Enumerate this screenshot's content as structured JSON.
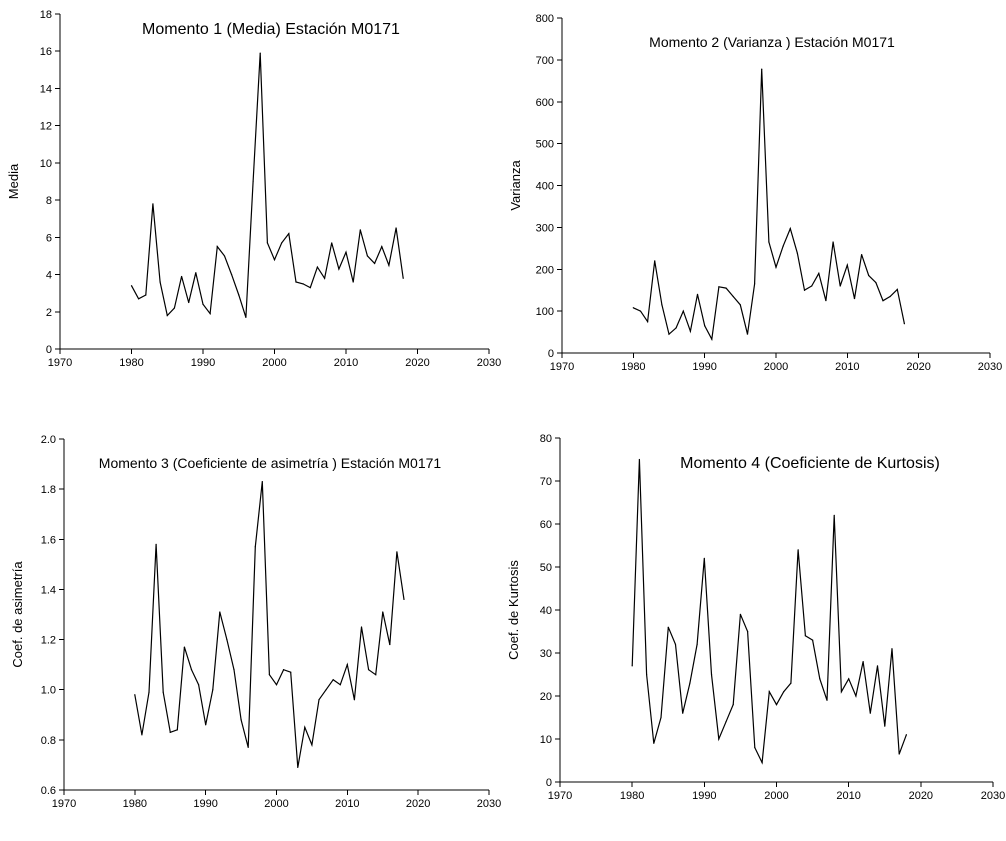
{
  "chart_data": [
    {
      "type": "line",
      "title": "Momento 1 (Media) Estación M0171",
      "xlabel": "",
      "ylabel": "Media",
      "xlim": [
        1970,
        2030
      ],
      "ylim": [
        0,
        18
      ],
      "xticks": [
        1970,
        1980,
        1990,
        2000,
        2010,
        2020,
        2030
      ],
      "yticks": [
        0,
        2,
        4,
        6,
        8,
        10,
        12,
        14,
        16,
        18
      ],
      "grid": false,
      "x": [
        1980,
        1981,
        1982,
        1983,
        1984,
        1985,
        1986,
        1987,
        1988,
        1989,
        1990,
        1991,
        1992,
        1993,
        1994,
        1995,
        1996,
        1997,
        1998,
        1999,
        2000,
        2001,
        2002,
        2003,
        2004,
        2005,
        2006,
        2007,
        2008,
        2009,
        2010,
        2011,
        2012,
        2013,
        2014,
        2015,
        2016,
        2017,
        2018
      ],
      "y": [
        3.4,
        2.7,
        2.9,
        7.8,
        3.6,
        1.8,
        2.2,
        3.9,
        2.5,
        4.1,
        2.4,
        1.9,
        5.5,
        5.0,
        4.0,
        2.9,
        1.7,
        9.0,
        15.9,
        5.7,
        4.8,
        5.7,
        6.2,
        3.6,
        3.5,
        3.3,
        4.4,
        3.8,
        5.7,
        4.3,
        5.2,
        3.6,
        6.4,
        5.0,
        4.6,
        5.5,
        4.5,
        6.5,
        3.8
      ]
    },
    {
      "type": "line",
      "title": "Momento 2 (Varianza ) Estación M0171",
      "xlabel": "",
      "ylabel": "Varianza",
      "xlim": [
        1970,
        2030
      ],
      "ylim": [
        0,
        800
      ],
      "xticks": [
        1970,
        1980,
        1990,
        2000,
        2010,
        2020,
        2030
      ],
      "yticks": [
        0,
        100,
        200,
        300,
        400,
        500,
        600,
        700,
        800
      ],
      "grid": false,
      "x": [
        1980,
        1981,
        1982,
        1983,
        1984,
        1985,
        1986,
        1987,
        1988,
        1989,
        1990,
        1991,
        1992,
        1993,
        1994,
        1995,
        1996,
        1997,
        1998,
        1999,
        2000,
        2001,
        2002,
        2003,
        2004,
        2005,
        2006,
        2007,
        2008,
        2009,
        2010,
        2011,
        2012,
        2013,
        2014,
        2015,
        2016,
        2017,
        2018
      ],
      "y": [
        108,
        100,
        75,
        220,
        115,
        45,
        60,
        100,
        52,
        140,
        65,
        33,
        158,
        155,
        135,
        115,
        45,
        165,
        678,
        265,
        205,
        255,
        297,
        238,
        150,
        160,
        190,
        125,
        265,
        160,
        210,
        130,
        235,
        185,
        168,
        125,
        135,
        152,
        70
      ]
    },
    {
      "type": "line",
      "title": "Momento 3 (Coeficiente de asimetría ) Estación M0171",
      "xlabel": "",
      "ylabel": "Coef. de asimetría",
      "xlim": [
        1970,
        2030
      ],
      "ylim": [
        0.6,
        2.0
      ],
      "xticks": [
        1970,
        1980,
        1990,
        2000,
        2010,
        2020,
        2030
      ],
      "yticks": [
        0.6,
        0.8,
        1.0,
        1.2,
        1.4,
        1.6,
        1.8,
        2.0
      ],
      "ytick_labels": [
        "0.6",
        "0.8",
        "1.0",
        "1.2",
        "1.4",
        "1.6",
        "1.8",
        "2.0"
      ],
      "grid": false,
      "x": [
        1980,
        1981,
        1982,
        1983,
        1984,
        1985,
        1986,
        1987,
        1988,
        1989,
        1990,
        1991,
        1992,
        1993,
        1994,
        1995,
        1996,
        1997,
        1998,
        1999,
        2000,
        2001,
        2002,
        2003,
        2004,
        2005,
        2006,
        2007,
        2008,
        2009,
        2010,
        2011,
        2012,
        2013,
        2014,
        2015,
        2016,
        2017,
        2018
      ],
      "y": [
        0.98,
        0.82,
        0.99,
        1.58,
        0.99,
        0.83,
        0.84,
        1.17,
        1.08,
        1.02,
        0.86,
        1.0,
        1.31,
        1.2,
        1.08,
        0.88,
        0.77,
        1.57,
        1.83,
        1.06,
        1.02,
        1.08,
        1.07,
        0.69,
        0.85,
        0.78,
        0.96,
        1.0,
        1.04,
        1.02,
        1.1,
        0.96,
        1.25,
        1.08,
        1.06,
        1.31,
        1.18,
        1.55,
        1.36
      ]
    },
    {
      "type": "line",
      "title": "Momento 4 (Coeficiente de Kurtosis)",
      "xlabel": "",
      "ylabel": "Coef. de Kurtosis",
      "xlim": [
        1970,
        2030
      ],
      "ylim": [
        0,
        80
      ],
      "xticks": [
        1970,
        1980,
        1990,
        2000,
        2010,
        2020,
        2030
      ],
      "yticks": [
        0,
        10,
        20,
        30,
        40,
        50,
        60,
        70,
        80
      ],
      "grid": false,
      "x": [
        1980,
        1981,
        1982,
        1983,
        1984,
        1985,
        1986,
        1987,
        1988,
        1989,
        1990,
        1991,
        1992,
        1993,
        1994,
        1995,
        1996,
        1997,
        1998,
        1999,
        2000,
        2001,
        2002,
        2003,
        2004,
        2005,
        2006,
        2007,
        2008,
        2009,
        2010,
        2011,
        2012,
        2013,
        2014,
        2015,
        2016,
        2017,
        2018
      ],
      "y": [
        27,
        75,
        25,
        9,
        15,
        36,
        32,
        16,
        23,
        32,
        52,
        25,
        10,
        14,
        18,
        39,
        35,
        8,
        4.5,
        21,
        18,
        21,
        23,
        54,
        34,
        33,
        24,
        19,
        62,
        21,
        24,
        20,
        28,
        16,
        27,
        13,
        31,
        6.5,
        11
      ]
    }
  ]
}
